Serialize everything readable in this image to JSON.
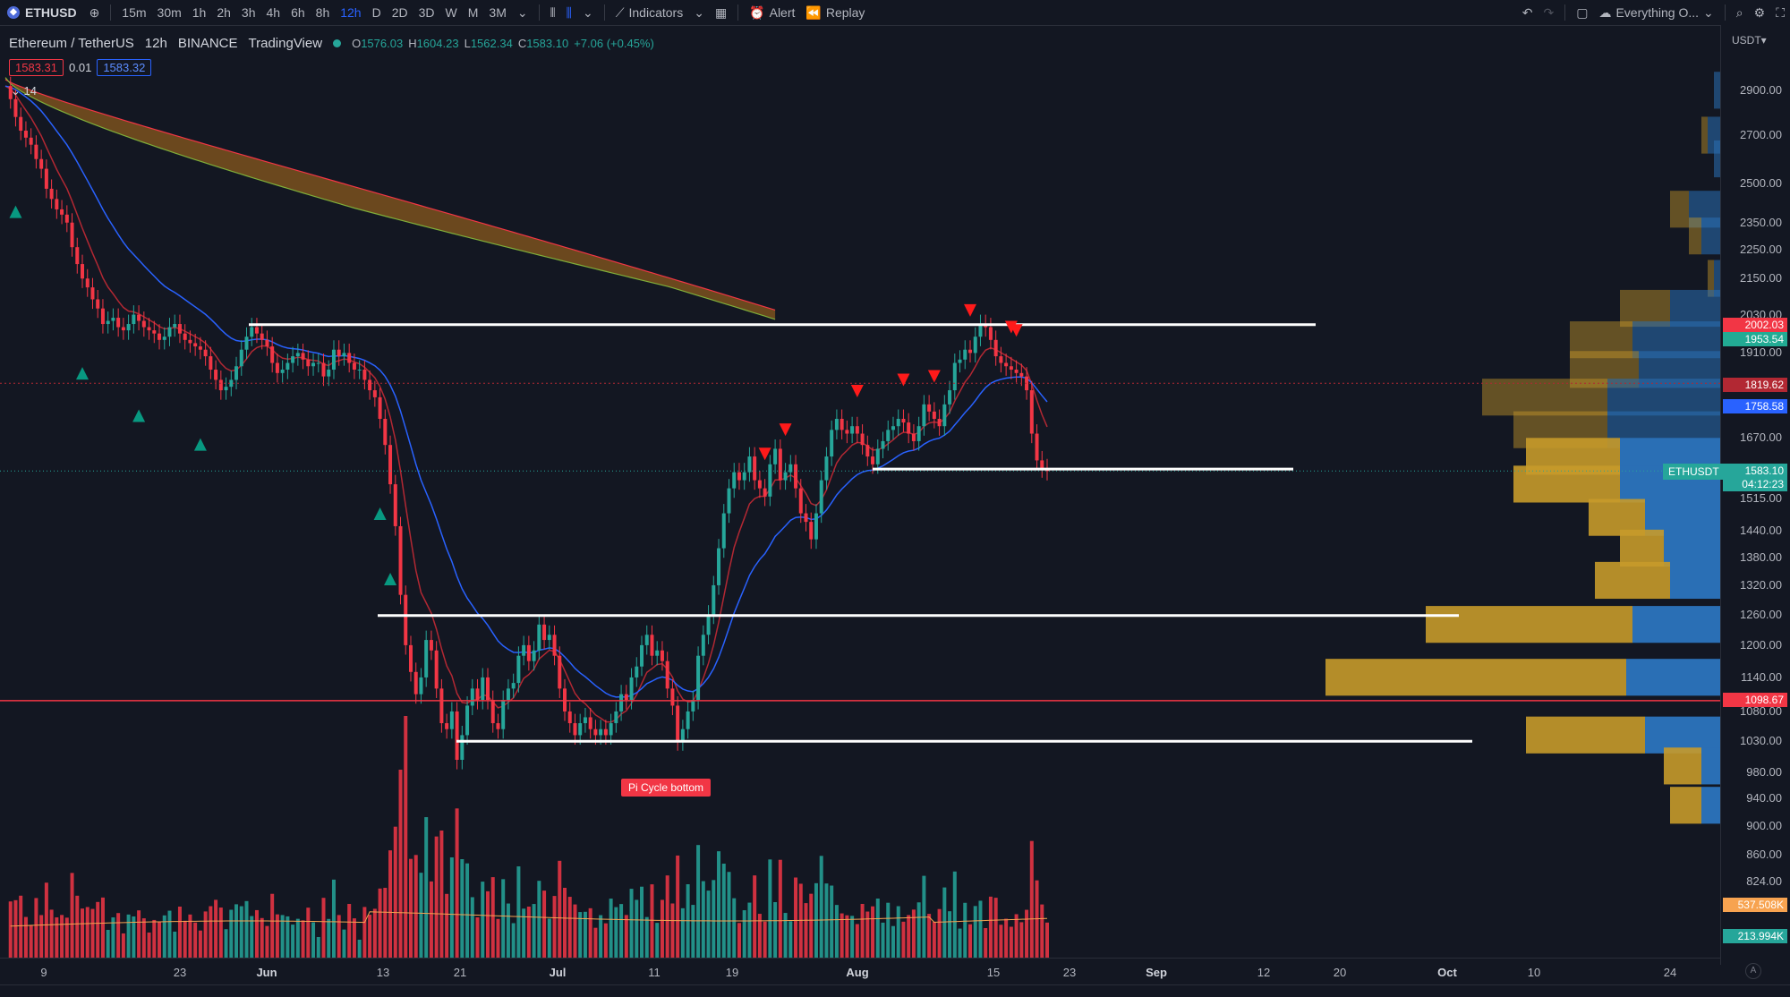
{
  "toolbar": {
    "symbol": "ETHUSD",
    "intervals": [
      "15m",
      "30m",
      "1h",
      "2h",
      "3h",
      "4h",
      "6h",
      "8h",
      "12h",
      "D",
      "2D",
      "3D",
      "W",
      "M",
      "3M"
    ],
    "active_interval": "12h",
    "indicators": "Indicators",
    "alert": "Alert",
    "replay": "Replay",
    "layout_name": "Everything O..."
  },
  "legend": {
    "title": "Ethereum / TetherUS",
    "interval": "12h",
    "exchange": "BINANCE",
    "source": "TradingView",
    "open_k": "O",
    "open": "1576.03",
    "high_k": "H",
    "high": "1604.23",
    "low_k": "L",
    "low": "1562.34",
    "close_k": "C",
    "close": "1583.10",
    "change": "+7.06 (+0.45%)",
    "bid": "1583.31",
    "spread": "0.01",
    "ask": "1583.32",
    "indicator_length": "14"
  },
  "price_axis": {
    "currency": "USDT",
    "ticks": [
      "2900.00",
      "2700.00",
      "2500.00",
      "2350.00",
      "2250.00",
      "2150.00",
      "2030.00",
      "1910.00",
      "1670.00",
      "1515.00",
      "1440.00",
      "1380.00",
      "1320.00",
      "1260.00",
      "1200.00",
      "1140.00",
      "1080.00",
      "1030.00",
      "980.00",
      "940.00",
      "900.00",
      "860.00",
      "824.00"
    ],
    "tags": {
      "red_upper": "2002.03",
      "green_upper": "1953.54",
      "dotted_level": "1819.62",
      "blue_ma": "1758.58",
      "last_price": "1583.10",
      "countdown": "04:12:23",
      "red_line": "1098.67",
      "vol_ma": "537.508K",
      "volume": "213.994K"
    },
    "ticker": "ETHUSDT"
  },
  "time_axis": {
    "labels": [
      "9",
      "23",
      "Jun",
      "13",
      "21",
      "Jul",
      "11",
      "19",
      "Aug",
      "15",
      "23",
      "Sep",
      "12",
      "20",
      "Oct",
      "10",
      "24"
    ],
    "bold": [
      "Jun",
      "Jul",
      "Aug",
      "Sep",
      "Oct"
    ]
  },
  "annotations": {
    "pi_cycle": "Pi Cycle bottom"
  },
  "colors": {
    "background": "#131722",
    "up": "#26a69a",
    "down": "#f23645",
    "ma_blue": "#2962ff",
    "ma_red": "#b22833",
    "band_fill": "#8a5a1e",
    "vp_up": "#2a6fb5",
    "vp_down": "#c79a2a"
  },
  "chart_data": {
    "type": "candlestick",
    "title": "Ethereum / TetherUS",
    "price_range": [
      800,
      3000
    ],
    "closes": [
      2920,
      2860,
      2780,
      2720,
      2690,
      2660,
      2600,
      2560,
      2480,
      2440,
      2400,
      2380,
      2350,
      2260,
      2200,
      2150,
      2120,
      2080,
      2050,
      2000,
      2010,
      2020,
      1990,
      1980,
      2000,
      2030,
      2010,
      1990,
      1980,
      1970,
      1950,
      1960,
      1990,
      2000,
      1970,
      1950,
      1940,
      1930,
      1920,
      1900,
      1860,
      1830,
      1800,
      1810,
      1830,
      1870,
      1920,
      1960,
      1990,
      1970,
      1950,
      1930,
      1880,
      1850,
      1860,
      1880,
      1900,
      1910,
      1890,
      1870,
      1880,
      1880,
      1840,
      1860,
      1920,
      1900,
      1910,
      1880,
      1860,
      1860,
      1830,
      1800,
      1780,
      1720,
      1650,
      1550,
      1450,
      1300,
      1200,
      1150,
      1110,
      1140,
      1210,
      1190,
      1120,
      1060,
      1050,
      1080,
      1000,
      1040,
      1090,
      1120,
      1100,
      1140,
      1100,
      1060,
      1050,
      1100,
      1120,
      1130,
      1180,
      1200,
      1170,
      1190,
      1240,
      1210,
      1220,
      1180,
      1120,
      1080,
      1060,
      1040,
      1060,
      1070,
      1050,
      1040,
      1050,
      1040,
      1060,
      1080,
      1110,
      1100,
      1140,
      1160,
      1200,
      1220,
      1180,
      1190,
      1170,
      1120,
      1090,
      1030,
      1050,
      1080,
      1100,
      1180,
      1220,
      1260,
      1320,
      1400,
      1480,
      1540,
      1580,
      1560,
      1580,
      1620,
      1560,
      1540,
      1520,
      1600,
      1640,
      1560,
      1580,
      1600,
      1540,
      1480,
      1460,
      1420,
      1480,
      1560,
      1620,
      1690,
      1720,
      1690,
      1680,
      1700,
      1680,
      1650,
      1620,
      1600,
      1640,
      1660,
      1690,
      1700,
      1720,
      1710,
      1680,
      1660,
      1700,
      1760,
      1740,
      1720,
      1700,
      1760,
      1800,
      1880,
      1890,
      1920,
      1910,
      1960,
      2000,
      1990,
      1950,
      1900,
      1880,
      1870,
      1860,
      1850,
      1840,
      1800,
      1680,
      1610,
      1590,
      1583
    ],
    "volume_ma": "537.508K",
    "last_volume": "213.994K"
  }
}
